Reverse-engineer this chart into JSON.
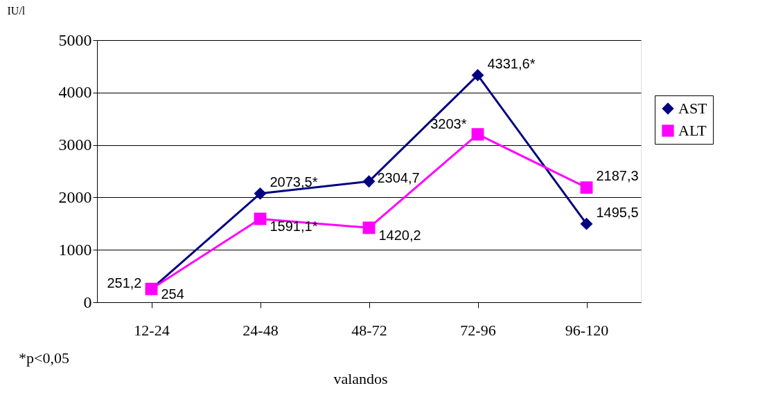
{
  "chart_data": {
    "type": "line",
    "ylabel": "IU/l",
    "xlabel": "valandos",
    "categories": [
      "12-24",
      "24-48",
      "48-72",
      "72-96",
      "96-120"
    ],
    "series": [
      {
        "name": "AST",
        "color": "#000080",
        "marker": "diamond",
        "values": [
          251.2,
          2073.5,
          2304.7,
          4331.6,
          1495.5
        ],
        "value_labels": [
          "251,2",
          "2073,5*",
          "2304,7",
          "4331,6*",
          "1495,5"
        ]
      },
      {
        "name": "ALT",
        "color": "#ff00ff",
        "marker": "square",
        "values": [
          254,
          1591.1,
          1420.2,
          3203,
          2187.3
        ],
        "value_labels": [
          "254",
          "1591,1*",
          "1420,2",
          "3203*",
          "2187,3"
        ]
      }
    ],
    "ylim": [
      0,
      5000
    ],
    "yticks": [
      0,
      1000,
      2000,
      3000,
      4000,
      5000
    ],
    "grid": "y",
    "legend": "right",
    "annotations": [
      "*p<0,05"
    ]
  }
}
